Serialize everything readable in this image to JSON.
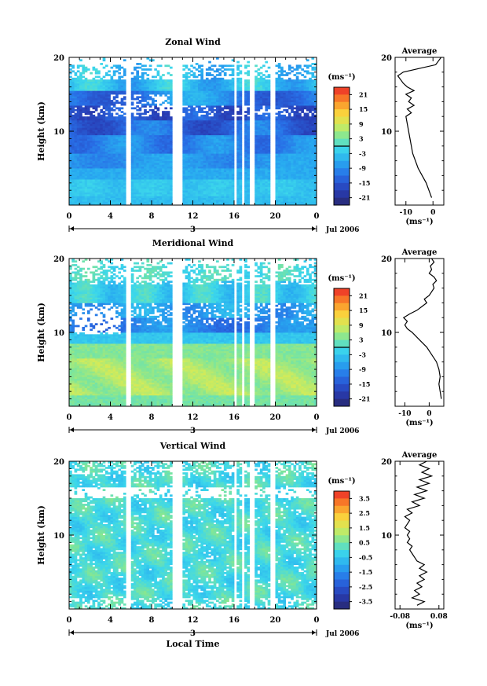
{
  "chart_data": [
    {
      "type": "heatmap",
      "title": "Zonal Wind",
      "ylabel": "Height (km)",
      "xlabel": "",
      "xticks": [
        "0",
        "4",
        "8",
        "12",
        "16",
        "20",
        "0"
      ],
      "yticks": [
        "10",
        "20"
      ],
      "xlim": [
        0,
        24
      ],
      "ylim": [
        0,
        20
      ],
      "date_label": "3",
      "month_label": "Jul 2006",
      "colorbar": {
        "unit": "(ms⁻¹)",
        "range": [
          -24,
          24
        ],
        "ticks": [
          {
            "label": "21",
            "v": 21
          },
          {
            "label": "15",
            "v": 15
          },
          {
            "label": "9",
            "v": 9
          },
          {
            "label": "3",
            "v": 3
          },
          {
            "label": "-3",
            "v": -3
          },
          {
            "label": "-9",
            "v": -9
          },
          {
            "label": "-15",
            "v": -15
          },
          {
            "label": "-21",
            "v": -21
          }
        ],
        "zero_line": 0
      },
      "gaps_hours": [
        [
          5.6,
          6.1
        ],
        [
          10.1,
          10.9
        ],
        [
          15.9,
          16.3
        ],
        [
          16.7,
          16.9
        ],
        [
          17.6,
          17.9
        ],
        [
          19.6,
          20.0
        ]
      ],
      "average": {
        "title": "Average",
        "xlabel": "(ms⁻¹)",
        "xlim": [
          -14,
          4
        ],
        "xticks": [
          {
            "label": "-10",
            "v": -10
          },
          {
            "label": "0",
            "v": 0
          }
        ],
        "yticks": [
          "10",
          "20"
        ],
        "profile": [
          {
            "h": 1,
            "v": -0.5
          },
          {
            "h": 2,
            "v": -1.5
          },
          {
            "h": 3,
            "v": -2.5
          },
          {
            "h": 4,
            "v": -4
          },
          {
            "h": 5,
            "v": -5.5
          },
          {
            "h": 6,
            "v": -6.5
          },
          {
            "h": 7,
            "v": -7.5
          },
          {
            "h": 8,
            "v": -8
          },
          {
            "h": 9,
            "v": -8.5
          },
          {
            "h": 10,
            "v": -9
          },
          {
            "h": 11,
            "v": -9.5
          },
          {
            "h": 12,
            "v": -10
          },
          {
            "h": 12.5,
            "v": -8
          },
          {
            "h": 13,
            "v": -9.5
          },
          {
            "h": 13.5,
            "v": -7
          },
          {
            "h": 14,
            "v": -9
          },
          {
            "h": 14.5,
            "v": -8
          },
          {
            "h": 15,
            "v": -10
          },
          {
            "h": 15.5,
            "v": -7
          },
          {
            "h": 16,
            "v": -9.5
          },
          {
            "h": 16.5,
            "v": -11
          },
          {
            "h": 17,
            "v": -12
          },
          {
            "h": 17.5,
            "v": -13
          },
          {
            "h": 18,
            "v": -11
          },
          {
            "h": 18.5,
            "v": -5
          },
          {
            "h": 19,
            "v": 1
          },
          {
            "h": 19.5,
            "v": 2
          },
          {
            "h": 20,
            "v": 3
          }
        ]
      }
    },
    {
      "type": "heatmap",
      "title": "Meridional Wind",
      "ylabel": "Height (km)",
      "xlabel": "",
      "xticks": [
        "0",
        "4",
        "8",
        "12",
        "16",
        "20",
        "0"
      ],
      "yticks": [
        "10",
        "20"
      ],
      "xlim": [
        0,
        24
      ],
      "ylim": [
        0,
        20
      ],
      "date_label": "3",
      "month_label": "Jul 2006",
      "colorbar": {
        "unit": "(ms⁻¹)",
        "range": [
          -24,
          24
        ],
        "ticks": [
          {
            "label": "21",
            "v": 21
          },
          {
            "label": "15",
            "v": 15
          },
          {
            "label": "9",
            "v": 9
          },
          {
            "label": "3",
            "v": 3
          },
          {
            "label": "-3",
            "v": -3
          },
          {
            "label": "-9",
            "v": -9
          },
          {
            "label": "-15",
            "v": -15
          },
          {
            "label": "-21",
            "v": -21
          }
        ],
        "zero_line": 0
      },
      "gaps_hours": [
        [
          5.6,
          6.1
        ],
        [
          10.1,
          10.9
        ],
        [
          15.9,
          16.3
        ],
        [
          16.7,
          16.9
        ],
        [
          17.6,
          17.9
        ],
        [
          19.6,
          20.0
        ]
      ],
      "average": {
        "title": "Average",
        "xlabel": "(ms⁻¹)",
        "xlim": [
          -14,
          6
        ],
        "xticks": [
          {
            "label": "-10",
            "v": -10
          },
          {
            "label": "0",
            "v": 0
          }
        ],
        "yticks": [
          "10",
          "20"
        ],
        "profile": [
          {
            "h": 1,
            "v": 5
          },
          {
            "h": 2,
            "v": 4.5
          },
          {
            "h": 3,
            "v": 4
          },
          {
            "h": 4,
            "v": 4.5
          },
          {
            "h": 5,
            "v": 4
          },
          {
            "h": 6,
            "v": 3
          },
          {
            "h": 7,
            "v": 1
          },
          {
            "h": 8,
            "v": -1
          },
          {
            "h": 9,
            "v": -4
          },
          {
            "h": 10,
            "v": -7
          },
          {
            "h": 10.5,
            "v": -9
          },
          {
            "h": 11,
            "v": -10
          },
          {
            "h": 11.5,
            "v": -9
          },
          {
            "h": 12,
            "v": -10.5
          },
          {
            "h": 12.5,
            "v": -8
          },
          {
            "h": 13,
            "v": -5
          },
          {
            "h": 13.5,
            "v": -3
          },
          {
            "h": 14,
            "v": -1
          },
          {
            "h": 14.5,
            "v": -2
          },
          {
            "h": 15,
            "v": 0
          },
          {
            "h": 15.5,
            "v": 1
          },
          {
            "h": 16,
            "v": 2
          },
          {
            "h": 16.5,
            "v": 1.5
          },
          {
            "h": 17,
            "v": 3
          },
          {
            "h": 17.5,
            "v": 2
          },
          {
            "h": 18,
            "v": 0
          },
          {
            "h": 18.5,
            "v": 1
          },
          {
            "h": 19,
            "v": 0.5
          },
          {
            "h": 19.5,
            "v": 2
          },
          {
            "h": 20,
            "v": 1
          }
        ]
      }
    },
    {
      "type": "heatmap",
      "title": "Vertical Wind",
      "ylabel": "Height (km)",
      "xlabel": "Local Time",
      "xticks": [
        "0",
        "4",
        "8",
        "12",
        "16",
        "20",
        "0"
      ],
      "yticks": [
        "10",
        "20"
      ],
      "xlim": [
        0,
        24
      ],
      "ylim": [
        0,
        20
      ],
      "date_label": "3",
      "month_label": "Jul 2006",
      "colorbar": {
        "unit": "(ms⁻¹)",
        "range": [
          -4,
          4
        ],
        "ticks": [
          {
            "label": "3.5",
            "v": 3.5
          },
          {
            "label": "2.5",
            "v": 2.5
          },
          {
            "label": "1.5",
            "v": 1.5
          },
          {
            "label": "0.5",
            "v": 0.5
          },
          {
            "label": "-0.5",
            "v": -0.5
          },
          {
            "label": "-1.5",
            "v": -1.5
          },
          {
            "label": "-2.5",
            "v": -2.5
          },
          {
            "label": "-3.5",
            "v": -3.5
          }
        ],
        "zero_line": null
      },
      "gaps_hours": [
        [
          5.6,
          6.1
        ],
        [
          10.1,
          10.9
        ],
        [
          15.9,
          16.3
        ],
        [
          16.7,
          16.9
        ],
        [
          17.6,
          17.9
        ],
        [
          19.6,
          20.0
        ]
      ],
      "average": {
        "title": "Average",
        "xlabel": "(ms⁻¹)",
        "xlim": [
          -0.1,
          0.1
        ],
        "xticks": [
          {
            "label": "-0.08",
            "v": -0.08
          },
          {
            "label": "0.08",
            "v": 0.08
          }
        ],
        "yticks": [
          "10",
          "20"
        ],
        "profile": [
          {
            "h": 0.5,
            "v": -0.01
          },
          {
            "h": 1,
            "v": 0.02
          },
          {
            "h": 1.5,
            "v": -0.03
          },
          {
            "h": 2,
            "v": 0.0
          },
          {
            "h": 2.5,
            "v": -0.02
          },
          {
            "h": 3,
            "v": 0.01
          },
          {
            "h": 3.5,
            "v": -0.01
          },
          {
            "h": 4,
            "v": 0.02
          },
          {
            "h": 4.5,
            "v": 0.0
          },
          {
            "h": 5,
            "v": 0.03
          },
          {
            "h": 5.5,
            "v": 0.0
          },
          {
            "h": 6,
            "v": 0.02
          },
          {
            "h": 6.5,
            "v": -0.01
          },
          {
            "h": 7,
            "v": -0.02
          },
          {
            "h": 7.5,
            "v": -0.03
          },
          {
            "h": 8,
            "v": -0.04
          },
          {
            "h": 8.5,
            "v": -0.03
          },
          {
            "h": 9,
            "v": -0.05
          },
          {
            "h": 9.5,
            "v": -0.04
          },
          {
            "h": 10,
            "v": -0.05
          },
          {
            "h": 10.5,
            "v": -0.04
          },
          {
            "h": 11,
            "v": -0.06
          },
          {
            "h": 11.5,
            "v": -0.05
          },
          {
            "h": 12,
            "v": -0.04
          },
          {
            "h": 12.5,
            "v": -0.06
          },
          {
            "h": 13,
            "v": -0.03
          },
          {
            "h": 13.5,
            "v": -0.05
          },
          {
            "h": 14,
            "v": 0.0
          },
          {
            "h": 14.5,
            "v": -0.03
          },
          {
            "h": 15,
            "v": 0.02
          },
          {
            "h": 15.5,
            "v": -0.02
          },
          {
            "h": 16,
            "v": 0.03
          },
          {
            "h": 16.5,
            "v": -0.01
          },
          {
            "h": 17,
            "v": 0.04
          },
          {
            "h": 17.5,
            "v": 0.0
          },
          {
            "h": 18,
            "v": 0.05
          },
          {
            "h": 18.5,
            "v": 0.01
          },
          {
            "h": 19,
            "v": 0.04
          },
          {
            "h": 19.5,
            "v": 0.0
          },
          {
            "h": 20,
            "v": 0.03
          }
        ]
      }
    }
  ]
}
